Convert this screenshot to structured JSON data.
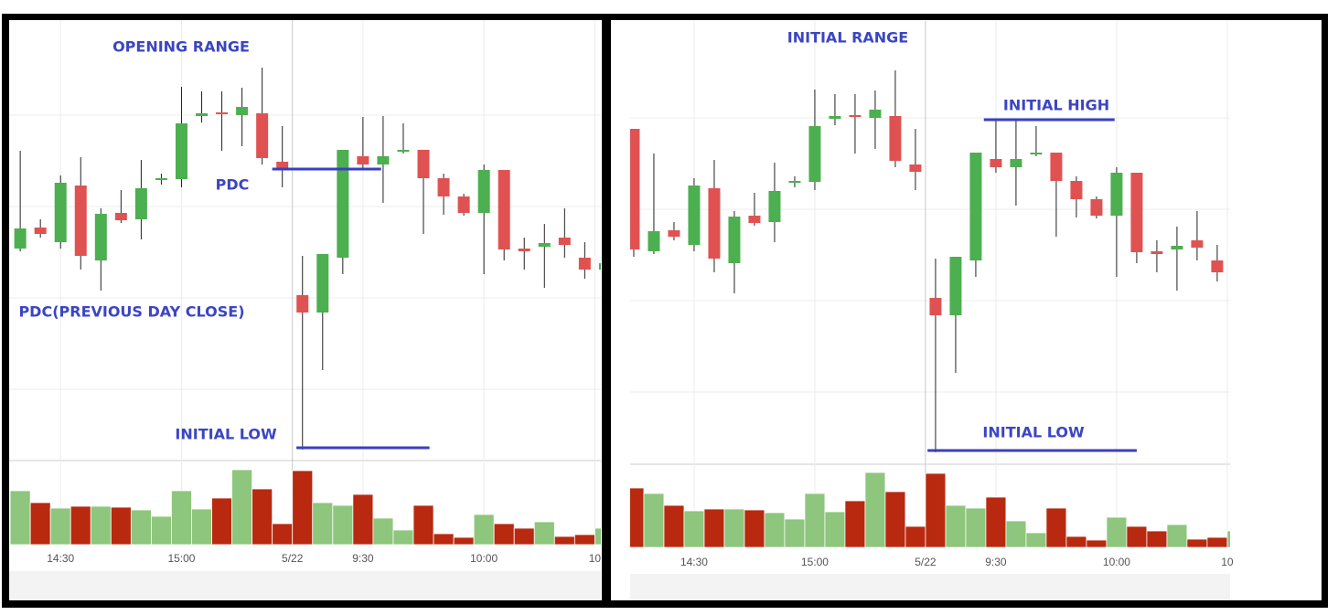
{
  "chart_data": [
    {
      "type": "candlestick",
      "open": [
        328,
        351,
        335,
        397,
        315,
        367,
        360,
        403,
        404,
        473,
        477,
        474,
        476,
        423,
        277,
        258,
        318,
        429,
        420,
        434,
        436,
        405,
        385,
        367,
        414,
        328,
        330,
        340,
        318,
        305
      ],
      "high": [
        435,
        360,
        408,
        428,
        372,
        392,
        425,
        410,
        505,
        500,
        500,
        504,
        526,
        462,
        320,
        322,
        436,
        472,
        473,
        465,
        436,
        410,
        388,
        420,
        414,
        340,
        355,
        372,
        335,
        320
      ],
      "low": [
        325,
        340,
        328,
        305,
        282,
        356,
        338,
        398,
        395,
        466,
        435,
        440,
        420,
        395,
        108,
        195,
        300,
        414,
        378,
        432,
        344,
        365,
        364,
        300,
        315,
        305,
        285,
        318,
        295,
        302
      ],
      "close": [
        350,
        344,
        400,
        320,
        366,
        359,
        394,
        405,
        465,
        476,
        475,
        483,
        427,
        415,
        258,
        322,
        436,
        420,
        429,
        436,
        405,
        385,
        367,
        414,
        327,
        325,
        334,
        332,
        305,
        312
      ],
      "volume": [
        59,
        46,
        40,
        42,
        42,
        41,
        38,
        31,
        59,
        39,
        51,
        82,
        61,
        23,
        81,
        46,
        43,
        55,
        29,
        16,
        43,
        12,
        8,
        33,
        23,
        18,
        25,
        9,
        11,
        18
      ],
      "up_color": "#4caf50",
      "down_color": "#e05252",
      "volume_up_color": "#8dc67c",
      "volume_down_color": "#b8290f",
      "xlim": [
        -0.55,
        28.8
      ],
      "xticks": [
        {
          "value": 2,
          "label": "14:30"
        },
        {
          "value": 8,
          "label": "15:00"
        },
        {
          "value": 13.5,
          "label": "5/22"
        },
        {
          "value": 17,
          "label": "9:30"
        },
        {
          "value": 23,
          "label": "10:00"
        },
        {
          "value": 28.5,
          "label": "10"
        }
      ],
      "ylim": [
        102,
        578
      ],
      "yticks": [
        174,
        274,
        374,
        474
      ],
      "volume_lim": [
        0,
        90
      ],
      "grid": true,
      "annotations": [
        "OPENING RANGE",
        "PDC",
        "PDC(PREVIOUS DAY CLOSE)",
        "INITIAL LOW"
      ],
      "levels": [
        {
          "value": 415,
          "x": [
            12.5,
            17.9
          ]
        },
        {
          "value": 110,
          "x": [
            13.7,
            20.3
          ]
        }
      ],
      "level_color": "#3a3fc0"
    },
    {
      "type": "candlestick",
      "open": [
        462,
        328,
        351,
        335,
        397,
        315,
        367,
        360,
        403,
        404,
        473,
        477,
        474,
        476,
        423,
        277,
        258,
        318,
        429,
        420,
        434,
        436,
        405,
        385,
        367,
        414,
        328,
        330,
        340,
        318,
        305
      ],
      "high": [
        462,
        435,
        360,
        408,
        428,
        372,
        392,
        425,
        410,
        505,
        500,
        500,
        504,
        526,
        462,
        320,
        322,
        436,
        472,
        473,
        465,
        436,
        410,
        388,
        420,
        414,
        340,
        355,
        372,
        335,
        320
      ],
      "low": [
        322,
        325,
        340,
        328,
        305,
        282,
        356,
        338,
        398,
        395,
        466,
        435,
        440,
        420,
        395,
        108,
        195,
        300,
        414,
        378,
        432,
        344,
        365,
        364,
        300,
        315,
        305,
        285,
        318,
        295,
        302
      ],
      "close": [
        330,
        350,
        344,
        400,
        320,
        366,
        359,
        394,
        405,
        465,
        476,
        475,
        483,
        427,
        415,
        258,
        322,
        436,
        420,
        429,
        436,
        405,
        385,
        367,
        414,
        327,
        325,
        334,
        332,
        305,
        312
      ],
      "volume": [
        65,
        59,
        46,
        40,
        42,
        42,
        41,
        38,
        31,
        59,
        39,
        51,
        82,
        61,
        23,
        81,
        46,
        43,
        55,
        29,
        16,
        43,
        12,
        8,
        33,
        23,
        18,
        25,
        9,
        11,
        18
      ],
      "up_color": "#4caf50",
      "down_color": "#e05252",
      "volume_up_color": "#8dc67c",
      "volume_down_color": "#b8290f",
      "xlim": [
        -0.18,
        29.64
      ],
      "xticks": [
        {
          "value": 3,
          "label": "14:30"
        },
        {
          "value": 9,
          "label": "15:00"
        },
        {
          "value": 14.5,
          "label": "5/22"
        },
        {
          "value": 18,
          "label": "9:30"
        },
        {
          "value": 24,
          "label": "10:00"
        },
        {
          "value": 29.5,
          "label": "10"
        }
      ],
      "ylim": [
        105,
        580
      ],
      "yticks": [
        174,
        274,
        374,
        474
      ],
      "volume_lim": [
        0,
        90
      ],
      "grid": true,
      "annotations": [
        "INITIAL RANGE",
        "INITIAL HIGH",
        "INITIAL LOW"
      ],
      "levels": [
        {
          "value": 472,
          "x": [
            17.4,
            23.9
          ]
        },
        {
          "value": 110,
          "x": [
            14.6,
            25.0
          ]
        }
      ],
      "level_color": "#3a3fc0"
    }
  ]
}
